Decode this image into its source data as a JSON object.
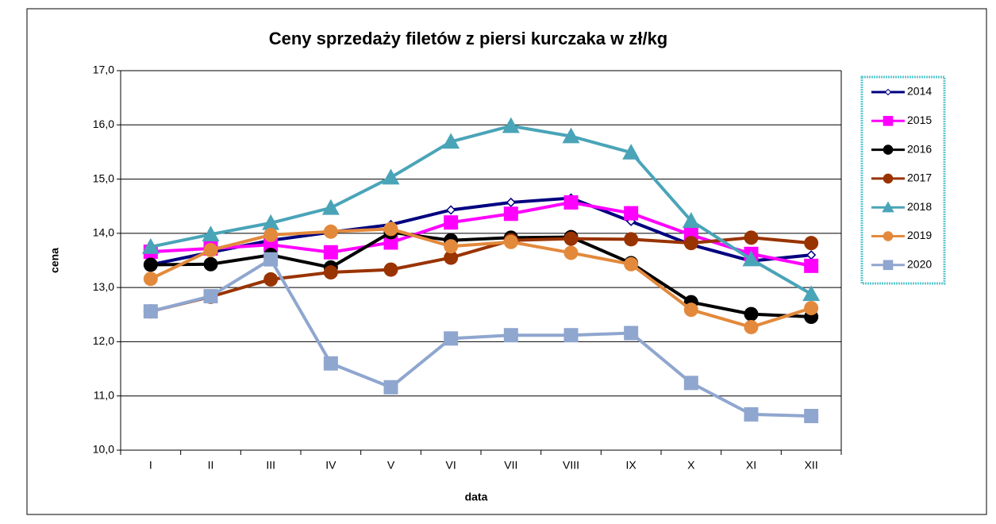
{
  "chart_data": {
    "type": "line",
    "title": "Ceny sprzedaży filetów z piersi kurczaka w zł/kg",
    "x_label": "data",
    "y_label": "cena",
    "categories": [
      "I",
      "II",
      "III",
      "IV",
      "V",
      "VI",
      "VII",
      "VIII",
      "IX",
      "X",
      "XI",
      "XII"
    ],
    "ylim": [
      10,
      17
    ],
    "yticks": [
      {
        "value": 10,
        "label": "10,0"
      },
      {
        "value": 11,
        "label": "11,0"
      },
      {
        "value": 12,
        "label": "12,0"
      },
      {
        "value": 13,
        "label": "13,0"
      },
      {
        "value": 14,
        "label": "14,0"
      },
      {
        "value": 15,
        "label": "15,0"
      },
      {
        "value": 16,
        "label": "16,0"
      },
      {
        "value": 17,
        "label": "17,0"
      }
    ],
    "grid": true,
    "legend": "right",
    "series": [
      {
        "name": "2014",
        "color": "#000080",
        "marker": "diamond",
        "values": [
          13.42,
          13.65,
          13.87,
          14.02,
          14.16,
          14.43,
          14.57,
          14.65,
          14.22,
          13.79,
          13.49,
          13.6
        ]
      },
      {
        "name": "2015",
        "color": "#ff00ff",
        "marker": "square",
        "values": [
          13.66,
          13.72,
          13.79,
          13.65,
          13.83,
          14.2,
          14.36,
          14.57,
          14.37,
          13.97,
          13.62,
          13.4
        ]
      },
      {
        "name": "2016",
        "color": "#000000",
        "marker": "circle",
        "values": [
          13.42,
          13.43,
          13.6,
          13.37,
          14.02,
          13.87,
          13.92,
          13.93,
          13.45,
          12.73,
          12.51,
          12.46
        ]
      },
      {
        "name": "2017",
        "color": "#993300",
        "marker": "circle",
        "values": [
          12.56,
          12.83,
          13.15,
          13.28,
          13.33,
          13.55,
          13.87,
          13.9,
          13.89,
          13.82,
          13.92,
          13.82
        ]
      },
      {
        "name": "2018",
        "color": "#4aa4b8",
        "marker": "triangle",
        "values": [
          13.75,
          13.98,
          14.19,
          14.47,
          15.03,
          15.69,
          15.98,
          15.79,
          15.49,
          14.23,
          13.52,
          12.88
        ]
      },
      {
        "name": "2019",
        "color": "#e3893c",
        "marker": "circle",
        "values": [
          13.16,
          13.69,
          13.97,
          14.03,
          14.08,
          13.76,
          13.84,
          13.64,
          13.43,
          12.59,
          12.27,
          12.62
        ]
      },
      {
        "name": "2020",
        "color": "#8fa6cf",
        "marker": "square",
        "values": [
          12.56,
          12.84,
          13.52,
          11.6,
          11.16,
          12.06,
          12.12,
          12.12,
          12.16,
          11.24,
          10.66,
          10.63
        ]
      }
    ]
  }
}
